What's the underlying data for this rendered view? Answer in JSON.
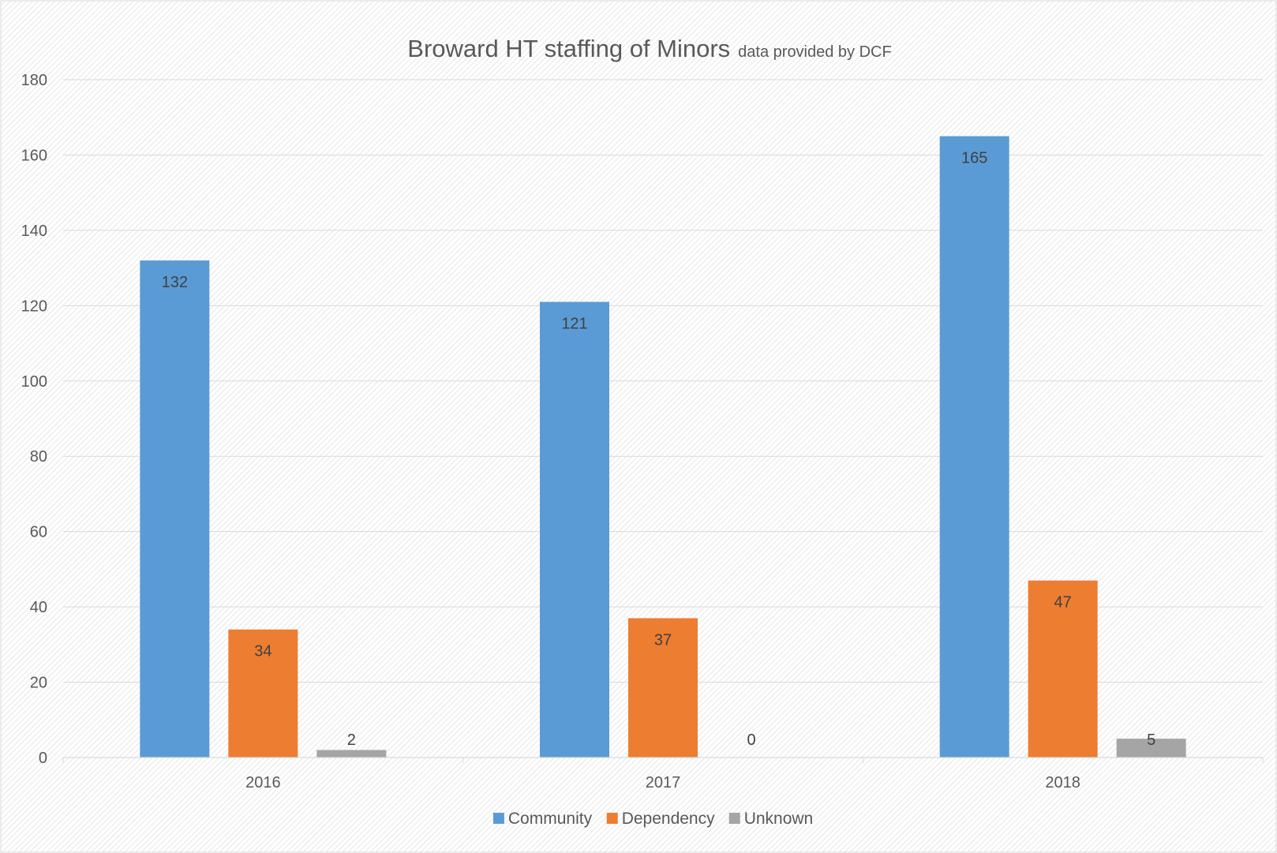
{
  "chart_data": {
    "type": "bar",
    "title": "Broward HT staffing of Minors",
    "subtitle": "data provided by DCF",
    "categories": [
      "2016",
      "2017",
      "2018"
    ],
    "series": [
      {
        "name": "Community",
        "values": [
          132,
          121,
          165
        ],
        "color": "#5B9BD5"
      },
      {
        "name": "Dependency",
        "values": [
          34,
          37,
          47
        ],
        "color": "#ED7D31"
      },
      {
        "name": "Unknown",
        "values": [
          2,
          0,
          5
        ],
        "color": "#A5A5A5"
      }
    ],
    "ylim": [
      0,
      180
    ],
    "yticks": [
      0,
      20,
      40,
      60,
      80,
      100,
      120,
      140,
      160,
      180
    ],
    "grid": true,
    "legend_position": "bottom",
    "data_labels": true
  }
}
